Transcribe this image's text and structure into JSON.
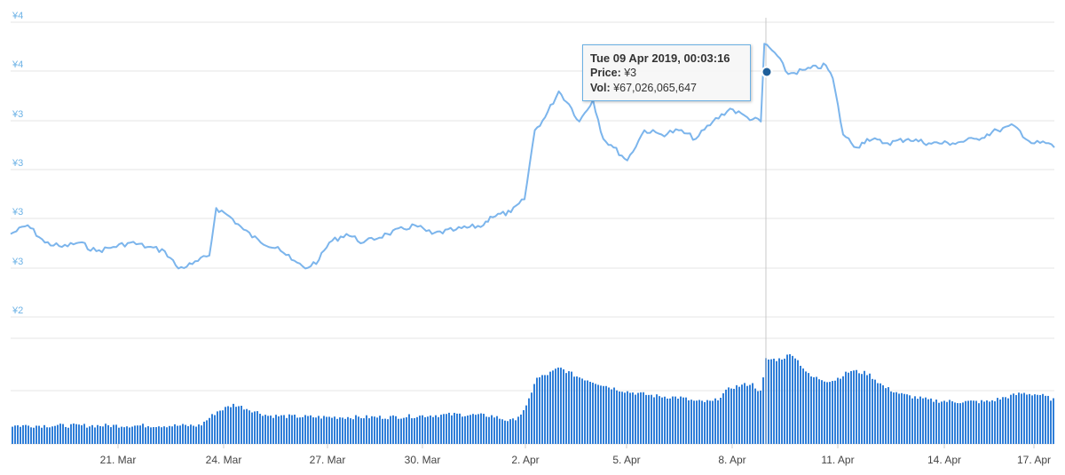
{
  "chart_data": {
    "type": "line",
    "title": "",
    "xlabel": "",
    "ylabel": "",
    "x_ticks": [
      "21. Mar",
      "24. Mar",
      "27. Mar",
      "30. Mar",
      "2. Apr",
      "5. Apr",
      "8. Apr",
      "11. Apr",
      "14. Apr",
      "17. Apr"
    ],
    "y_ticks": [
      "¥4",
      "¥4",
      "¥3",
      "¥3",
      "¥3",
      "¥3",
      "¥2"
    ],
    "grid": true,
    "legend": "none",
    "series": [
      {
        "kind": "price-line",
        "color": "#7cb5ec",
        "points": [
          [
            "18 Mar",
            2.66
          ],
          [
            "18.5 Mar",
            2.68
          ],
          [
            "19 Mar",
            2.64
          ],
          [
            "19.5 Mar",
            2.63
          ],
          [
            "20 Mar",
            2.64
          ],
          [
            "20.5 Mar",
            2.62
          ],
          [
            "21 Mar",
            2.63
          ],
          [
            "21.5 Mar",
            2.64
          ],
          [
            "22 Mar",
            2.63
          ],
          [
            "22.5 Mar",
            2.62
          ],
          [
            "22.9 Mar",
            2.58
          ],
          [
            "23.3 Mar",
            2.59
          ],
          [
            "23.8 Mar",
            2.61
          ],
          [
            "24 Mar",
            2.72
          ],
          [
            "24.4 Mar",
            2.7
          ],
          [
            "24.8 Mar",
            2.67
          ],
          [
            "25.3 Mar",
            2.64
          ],
          [
            "25.8 Mar",
            2.63
          ],
          [
            "26.2 Mar",
            2.6
          ],
          [
            "26.6 Mar",
            2.58
          ],
          [
            "27 Mar",
            2.6
          ],
          [
            "27.3 Mar",
            2.64
          ],
          [
            "27.8 Mar",
            2.66
          ],
          [
            "28.3 Mar",
            2.64
          ],
          [
            "29 Mar",
            2.66
          ],
          [
            "29.8 Mar",
            2.68
          ],
          [
            "30.3 Mar",
            2.66
          ],
          [
            "31 Mar",
            2.67
          ],
          [
            "31.8 Mar",
            2.68
          ],
          [
            "1 Apr",
            2.7
          ],
          [
            "1.6 Apr",
            2.71
          ],
          [
            "2 Apr",
            2.74
          ],
          [
            "2.3 Apr",
            2.9
          ],
          [
            "2.6 Apr",
            2.93
          ],
          [
            "3 Apr",
            2.99
          ],
          [
            "3.3 Apr",
            2.96
          ],
          [
            "3.6 Apr",
            2.92
          ],
          [
            "4 Apr",
            2.97
          ],
          [
            "4.3 Apr",
            2.88
          ],
          [
            "4.6 Apr",
            2.86
          ],
          [
            "5 Apr",
            2.83
          ],
          [
            "5.5 Apr",
            2.9
          ],
          [
            "6 Apr",
            2.89
          ],
          [
            "6.5 Apr",
            2.9
          ],
          [
            "7 Apr",
            2.88
          ],
          [
            "7.5 Apr",
            2.92
          ],
          [
            "8 Apr",
            2.95
          ],
          [
            "8.5 Apr",
            2.93
          ],
          [
            "8.9 Apr",
            2.92
          ],
          [
            "9 Apr",
            3.1
          ],
          [
            "9.3 Apr",
            3.08
          ],
          [
            "9.7 Apr",
            3.03
          ],
          [
            "10.2 Apr",
            3.04
          ],
          [
            "10.8 Apr",
            3.05
          ],
          [
            "11 Apr",
            3.02
          ],
          [
            "11.3 Apr",
            2.89
          ],
          [
            "11.7 Apr",
            2.86
          ],
          [
            "12 Apr",
            2.88
          ],
          [
            "12.6 Apr",
            2.87
          ],
          [
            "13.2 Apr",
            2.88
          ],
          [
            "13.8 Apr",
            2.87
          ],
          [
            "14.5 Apr",
            2.87
          ],
          [
            "15.2 Apr",
            2.88
          ],
          [
            "15.8 Apr",
            2.9
          ],
          [
            "16.3 Apr",
            2.91
          ],
          [
            "16.8 Apr",
            2.87
          ],
          [
            "17.3 Apr",
            2.87
          ],
          [
            "17.6 Apr",
            2.86
          ]
        ]
      },
      {
        "kind": "volume-bars",
        "color": "#2f7ed8",
        "points": [
          [
            "18 Mar",
            13
          ],
          [
            "20 Mar",
            13
          ],
          [
            "22 Mar",
            13
          ],
          [
            "23.5 Mar",
            13
          ],
          [
            "24 Mar",
            23
          ],
          [
            "24.5 Mar",
            28
          ],
          [
            "25 Mar",
            24
          ],
          [
            "25.5 Mar",
            20
          ],
          [
            "27 Mar",
            19
          ],
          [
            "29 Mar",
            19
          ],
          [
            "30 Mar",
            20
          ],
          [
            "31 Mar",
            21
          ],
          [
            "1 Apr",
            20
          ],
          [
            "1.6 Apr",
            16
          ],
          [
            "2 Apr",
            24
          ],
          [
            "2.3 Apr",
            46
          ],
          [
            "2.7 Apr",
            50
          ],
          [
            "3 Apr",
            54
          ],
          [
            "3.5 Apr",
            48
          ],
          [
            "4 Apr",
            44
          ],
          [
            "4.5 Apr",
            40
          ],
          [
            "5 Apr",
            37
          ],
          [
            "5.8 Apr",
            34
          ],
          [
            "6.5 Apr",
            33
          ],
          [
            "7 Apr",
            30
          ],
          [
            "7.5 Apr",
            30
          ],
          [
            "8 Apr",
            40
          ],
          [
            "8.6 Apr",
            43
          ],
          [
            "8.9 Apr",
            36
          ],
          [
            "9 Apr",
            60
          ],
          [
            "9.4 Apr",
            60
          ],
          [
            "9.8 Apr",
            64
          ],
          [
            "10.3 Apr",
            48
          ],
          [
            "10.8 Apr",
            45
          ],
          [
            "11 Apr",
            45
          ],
          [
            "11.5 Apr",
            52
          ],
          [
            "12 Apr",
            50
          ],
          [
            "12.5 Apr",
            40
          ],
          [
            "13 Apr",
            35
          ],
          [
            "13.8 Apr",
            31
          ],
          [
            "14.5 Apr",
            30
          ],
          [
            "15.5 Apr",
            30
          ],
          [
            "16 Apr",
            33
          ],
          [
            "16.5 Apr",
            36
          ],
          [
            "17 Apr",
            35
          ],
          [
            "17.6 Apr",
            31
          ]
        ]
      }
    ],
    "tooltip": {
      "title": "Tue 09 Apr 2019, 00:03:16",
      "price_label": "Price:",
      "price_value": "¥3",
      "vol_label": "Vol:",
      "vol_value": "¥67,026,065,647"
    }
  }
}
